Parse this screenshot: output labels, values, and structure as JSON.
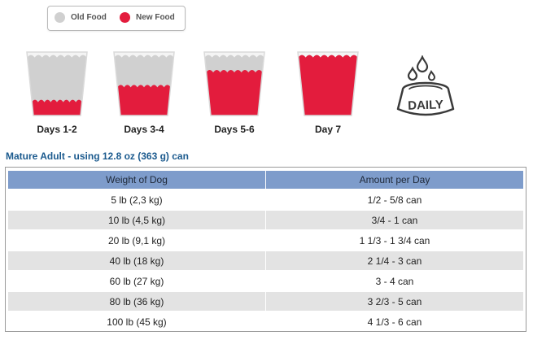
{
  "legend": {
    "old_label": "Old Food",
    "new_label": "New Food",
    "old_color": "#d0d0d0",
    "new_color": "#e31c3d"
  },
  "transition": [
    {
      "label": "Days 1-2",
      "new_fraction": 0.25
    },
    {
      "label": "Days 3-4",
      "new_fraction": 0.5
    },
    {
      "label": "Days 5-6",
      "new_fraction": 0.75
    },
    {
      "label": "Day 7",
      "new_fraction": 1.0
    }
  ],
  "daily_icon": {
    "text": "DAILY",
    "icon": "water-bowl-icon"
  },
  "section_title": "Mature Adult - using 12.8 oz (363 g) can",
  "table": {
    "headers": [
      "Weight of Dog",
      "Amount per Day"
    ],
    "rows": [
      [
        "5 lb (2,3 kg)",
        "1/2 - 5/8 can"
      ],
      [
        "10 lb (4,5 kg)",
        "3/4 - 1 can"
      ],
      [
        "20 lb (9,1 kg)",
        "1 1/3 - 1 3/4 can"
      ],
      [
        "40 lb (18 kg)",
        "2 1/4 - 3 can"
      ],
      [
        "60 lb (27 kg)",
        "3 - 4 can"
      ],
      [
        "80 lb (36 kg)",
        "3 2/3 - 5 can"
      ],
      [
        "100 lb (45 kg)",
        "4 1/3 - 6 can"
      ]
    ]
  }
}
